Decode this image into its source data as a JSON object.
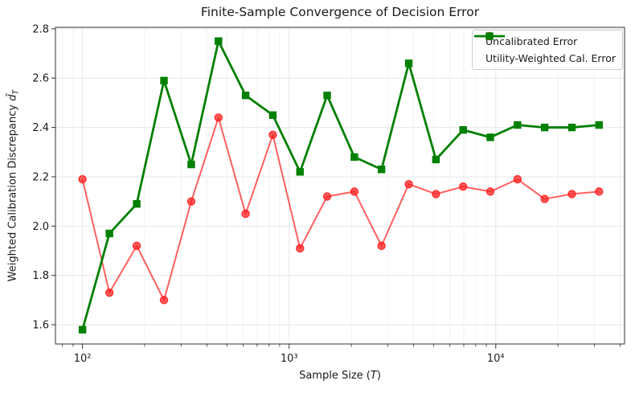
{
  "chart_data": {
    "type": "line",
    "title": "Finite-Sample Convergence of Decision Error",
    "xlabel": "Sample Size (T)",
    "ylabel": "Weighted Calibration Discrepancy d̂_T",
    "x_scale": "log",
    "xlim": [
      74,
      42000
    ],
    "ylim": [
      1.522,
      2.806
    ],
    "grid": true,
    "legend_position": "upper right",
    "x": [
      100,
      135,
      183,
      248,
      336,
      455,
      616,
      834,
      1129,
      1528,
      2069,
      2800,
      3793,
      5136,
      6952,
      9412,
      12742,
      17250,
      23357,
      31623
    ],
    "series": [
      {
        "name": "Uncalibrated Error",
        "marker": "circle",
        "color": "#ff2222",
        "line_opacity": 0.72,
        "values": [
          2.19,
          1.73,
          1.92,
          1.7,
          2.1,
          2.44,
          2.05,
          2.37,
          1.91,
          2.12,
          2.14,
          1.92,
          2.17,
          2.13,
          2.16,
          2.14,
          2.19,
          2.11,
          2.13,
          2.14
        ]
      },
      {
        "name": "Utility-Weighted Cal. Error",
        "marker": "square",
        "color": "#008000",
        "line_opacity": 1,
        "values": [
          1.58,
          1.97,
          2.09,
          2.59,
          2.25,
          2.75,
          2.53,
          2.45,
          2.22,
          2.53,
          2.28,
          2.23,
          2.66,
          2.27,
          2.39,
          2.36,
          2.41,
          2.4,
          2.4,
          2.41
        ]
      }
    ],
    "x_ticks": [
      {
        "value": 100,
        "label": "10²"
      },
      {
        "value": 1000,
        "label": "10³"
      },
      {
        "value": 10000,
        "label": "10⁴"
      }
    ],
    "y_ticks": [
      {
        "value": 1.6,
        "label": "1.6"
      },
      {
        "value": 1.8,
        "label": "1.8"
      },
      {
        "value": 2.0,
        "label": "2.0"
      },
      {
        "value": 2.2,
        "label": "2.2"
      },
      {
        "value": 2.4,
        "label": "2.4"
      },
      {
        "value": 2.6,
        "label": "2.6"
      },
      {
        "value": 2.8,
        "label": "2.8"
      }
    ]
  },
  "axis_labels": {
    "x_prefix": "Sample Size (",
    "x_symbol": "T",
    "x_suffix": ")",
    "y_prefix": "Weighted Calibration Discrepancy ",
    "y_symbol": "d̂",
    "y_subscript": "T"
  },
  "colors": {
    "grid_major": "#e7e7e7",
    "grid_minor": "#f1f1f1",
    "spine": "#333333",
    "text": "#1a1a1a"
  }
}
